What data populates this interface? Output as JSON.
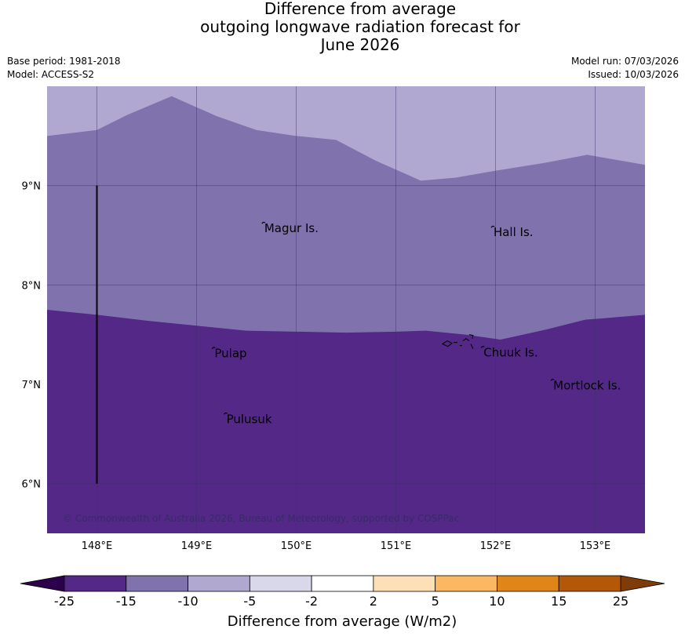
{
  "title": {
    "line1": "Difference from average",
    "line2": "outgoing longwave radiation forecast for",
    "line3": "June 2026"
  },
  "meta": {
    "base_period": "Base period: 1981-2018",
    "model": "Model: ACCESS-S2",
    "model_run": "Model run: 07/03/2026",
    "issued": "Issued: 10/03/2026"
  },
  "map": {
    "lon_range": [
      147.5,
      153.5
    ],
    "lat_range": [
      5.5,
      10.0
    ],
    "lon_ticks": [
      {
        "value": 148,
        "label": "148°E"
      },
      {
        "value": 149,
        "label": "149°E"
      },
      {
        "value": 150,
        "label": "150°E"
      },
      {
        "value": 151,
        "label": "151°E"
      },
      {
        "value": 152,
        "label": "152°E"
      },
      {
        "value": 153,
        "label": "153°E"
      }
    ],
    "lat_ticks": [
      {
        "value": 9,
        "label": "9°N"
      },
      {
        "value": 8,
        "label": "8°N"
      },
      {
        "value": 7,
        "label": "7°N"
      },
      {
        "value": 6,
        "label": "6°N"
      }
    ],
    "places": [
      {
        "name": "Magur Is.",
        "lon": 149.68,
        "lat": 8.57
      },
      {
        "name": "Hall Is.",
        "lon": 151.98,
        "lat": 8.53
      },
      {
        "name": "Pulap",
        "lon": 149.18,
        "lat": 7.31
      },
      {
        "name": "Chuuk Is.",
        "lon": 151.88,
        "lat": 7.32
      },
      {
        "name": "Mortlock Is.",
        "lon": 152.58,
        "lat": 6.99
      },
      {
        "name": "Pulusuk",
        "lon": 149.3,
        "lat": 6.65
      }
    ],
    "colors": {
      "minus25_15": "#532887",
      "minus15_10": "#8073ad",
      "minus10_5": "#b0a8d1"
    },
    "band_upper_boundary": [
      [
        147.5,
        9.5
      ],
      [
        148.0,
        9.56
      ],
      [
        148.3,
        9.71
      ],
      [
        148.75,
        9.9
      ],
      [
        149.2,
        9.7
      ],
      [
        149.6,
        9.56
      ],
      [
        150.0,
        9.5
      ],
      [
        150.4,
        9.46
      ],
      [
        150.8,
        9.25
      ],
      [
        151.25,
        9.05
      ],
      [
        151.6,
        9.08
      ],
      [
        152.0,
        9.15
      ],
      [
        152.5,
        9.23
      ],
      [
        152.92,
        9.31
      ],
      [
        153.5,
        9.21
      ]
    ],
    "band_lower_boundary": [
      [
        147.5,
        7.75
      ],
      [
        148.0,
        7.7
      ],
      [
        148.5,
        7.64
      ],
      [
        149.0,
        7.59
      ],
      [
        149.5,
        7.54
      ],
      [
        150.0,
        7.53
      ],
      [
        150.5,
        7.52
      ],
      [
        151.0,
        7.53
      ],
      [
        151.3,
        7.54
      ],
      [
        151.7,
        7.5
      ],
      [
        152.05,
        7.45
      ],
      [
        152.5,
        7.55
      ],
      [
        152.9,
        7.65
      ],
      [
        153.5,
        7.7
      ]
    ],
    "vertical_line": {
      "lon": 148.0,
      "lat_from": 6.0,
      "lat_to": 9.0
    },
    "copyright": "© Commonwealth of Australia 2026, Bureau of Meteorology, supported by COSPPac"
  },
  "colorbar": {
    "label": "Difference from average (W/m2)",
    "ticks": [
      "-25",
      "-15",
      "-10",
      "-5",
      "-2",
      "2",
      "5",
      "10",
      "15",
      "25"
    ],
    "bins": [
      "#532887",
      "#8073ad",
      "#b0a8d1",
      "#d9d8ea",
      "#ffffff",
      "#fde0b8",
      "#fbb761",
      "#e08518",
      "#b35806"
    ],
    "under_color": "#2d004b",
    "over_color": "#7f3b08"
  }
}
